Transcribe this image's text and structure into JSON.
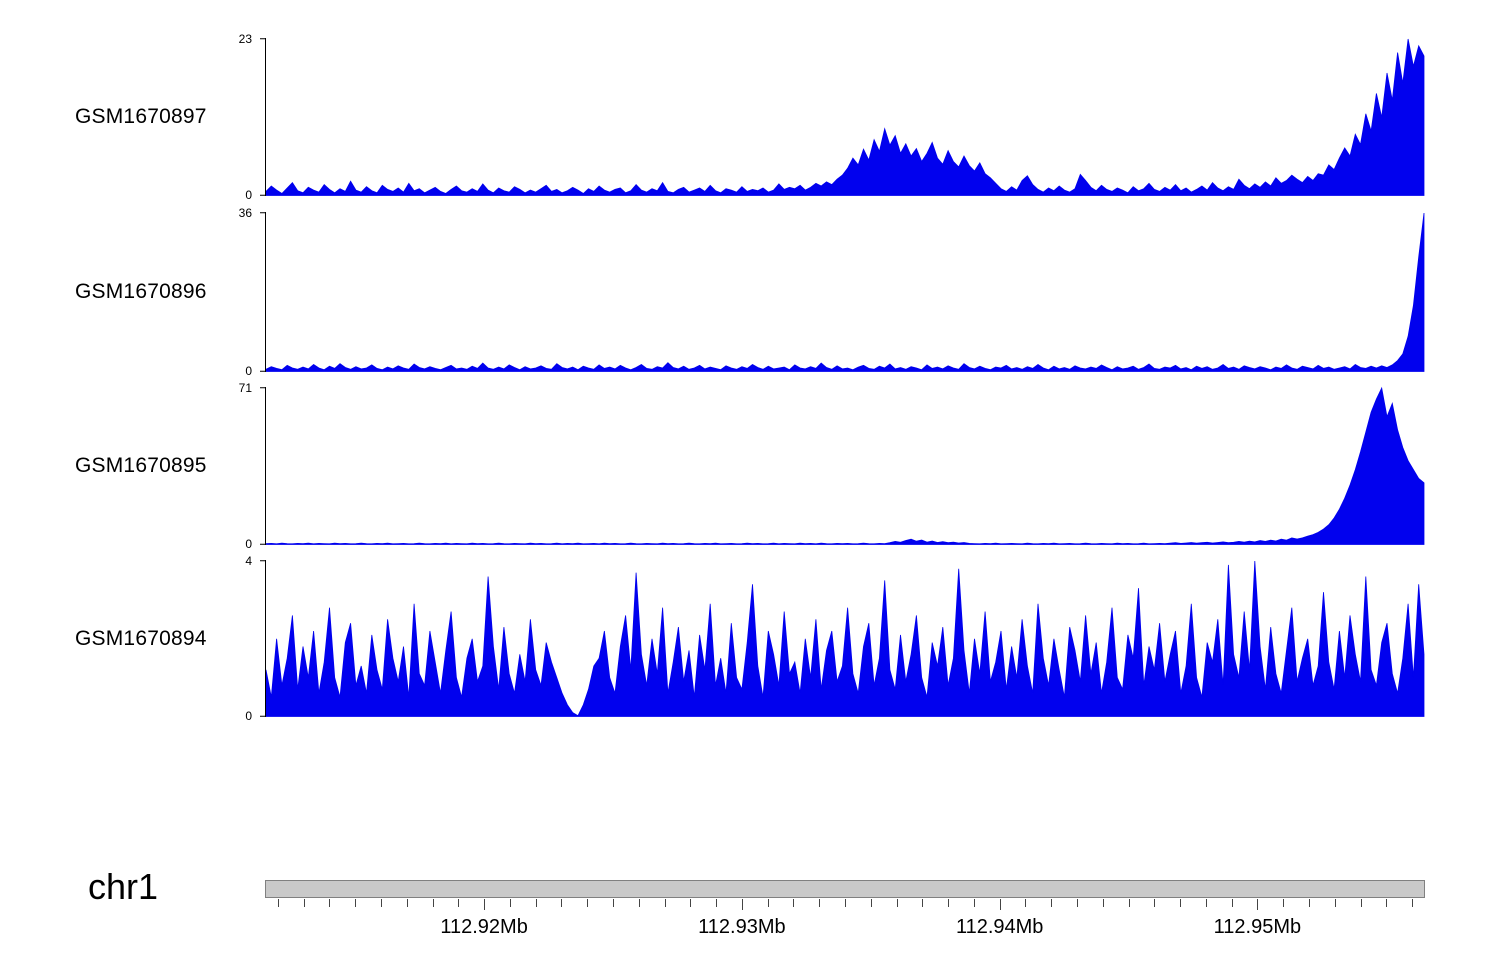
{
  "page": {
    "background": "#ffffff"
  },
  "chart_data": {
    "type": "area",
    "title": "",
    "xlabel": "chr1",
    "grid": false,
    "legend": "none",
    "signal_color": "#0101ee",
    "ruler_bar_color": "#c9c9c9",
    "x_axis": {
      "label": "chr1",
      "start_mb": 112.9115,
      "end_mb": 112.9565,
      "minor_tick_step_mb": 0.001,
      "tick_positions_mb": [
        112.92,
        112.93,
        112.94,
        112.95
      ],
      "tick_labels": [
        "112.92Mb",
        "112.93Mb",
        "112.94Mb",
        "112.95Mb"
      ]
    },
    "series": [
      {
        "name": "GSM1670897",
        "ylim": [
          0,
          23
        ],
        "values": [
          0.6,
          1.4,
          0.8,
          0.3,
          1.1,
          1.9,
          0.7,
          0.4,
          1.2,
          0.8,
          0.5,
          1.6,
          0.9,
          0.4,
          1.0,
          0.6,
          2.1,
          0.8,
          0.5,
          1.3,
          0.7,
          0.4,
          1.5,
          0.9,
          0.6,
          1.1,
          0.5,
          1.8,
          0.7,
          1.0,
          0.4,
          0.8,
          1.2,
          0.6,
          0.3,
          0.9,
          1.4,
          0.7,
          0.5,
          1.0,
          0.6,
          1.7,
          0.8,
          0.4,
          1.1,
          0.7,
          0.5,
          1.3,
          0.9,
          0.4,
          0.8,
          0.5,
          1.0,
          1.5,
          0.6,
          0.9,
          0.4,
          0.7,
          1.2,
          0.8,
          0.3,
          1.0,
          0.6,
          1.4,
          0.8,
          0.5,
          0.9,
          1.1,
          0.4,
          0.7,
          1.6,
          0.8,
          0.5,
          1.0,
          0.7,
          1.9,
          0.6,
          0.4,
          0.9,
          1.2,
          0.5,
          0.8,
          1.1,
          0.6,
          1.5,
          0.7,
          0.4,
          1.0,
          0.8,
          0.5,
          1.3,
          0.6,
          0.9,
          0.7,
          1.1,
          0.5,
          0.8,
          1.7,
          0.9,
          1.2,
          1.0,
          1.5,
          0.8,
          1.2,
          1.8,
          1.4,
          2.0,
          1.6,
          2.4,
          3.0,
          4.0,
          5.5,
          4.5,
          6.8,
          5.2,
          8.2,
          6.5,
          9.8,
          7.4,
          8.8,
          6.2,
          7.6,
          5.8,
          6.9,
          5.0,
          6.2,
          7.8,
          5.5,
          4.6,
          6.6,
          5.0,
          4.2,
          5.8,
          4.4,
          3.6,
          4.8,
          3.2,
          2.6,
          1.8,
          1.0,
          0.6,
          1.3,
          0.8,
          2.2,
          2.9,
          1.6,
          0.9,
          0.5,
          1.1,
          0.7,
          1.4,
          0.8,
          0.5,
          1.0,
          3.1,
          2.2,
          1.2,
          0.7,
          1.5,
          0.9,
          0.6,
          1.1,
          0.8,
          0.4,
          1.3,
          0.7,
          1.0,
          1.8,
          0.9,
          0.6,
          1.2,
          0.8,
          1.6,
          0.7,
          1.1,
          0.5,
          0.9,
          1.4,
          0.8,
          1.9,
          1.1,
          0.7,
          1.3,
          0.9,
          2.4,
          1.5,
          1.0,
          1.7,
          1.2,
          2.0,
          1.4,
          2.6,
          1.8,
          2.2,
          3.0,
          2.4,
          1.9,
          2.8,
          2.2,
          3.2,
          3.0,
          4.5,
          3.8,
          5.5,
          7.0,
          5.8,
          9.0,
          7.5,
          12.0,
          9.5,
          15.0,
          11.5,
          18.0,
          14.0,
          21.0,
          16.5,
          23.0,
          19.0,
          22.0,
          20.5
        ]
      },
      {
        "name": "GSM1670896",
        "ylim": [
          0,
          36
        ],
        "values": [
          0.5,
          1.1,
          0.7,
          0.4,
          1.4,
          0.8,
          0.5,
          1.0,
          0.6,
          1.6,
          0.8,
          0.4,
          1.2,
          0.7,
          1.8,
          0.9,
          0.5,
          1.1,
          0.6,
          0.8,
          1.5,
          0.7,
          0.4,
          1.0,
          0.6,
          1.3,
          0.8,
          0.5,
          1.7,
          0.9,
          0.6,
          1.1,
          0.7,
          0.4,
          0.9,
          1.4,
          0.6,
          0.8,
          0.5,
          1.2,
          0.7,
          1.9,
          0.8,
          0.5,
          1.0,
          0.6,
          1.5,
          0.9,
          0.4,
          1.1,
          0.6,
          0.8,
          1.3,
          0.7,
          0.5,
          1.8,
          0.9,
          0.6,
          1.0,
          0.4,
          1.2,
          0.8,
          0.5,
          1.5,
          0.7,
          1.0,
          0.6,
          1.4,
          0.8,
          0.4,
          0.9,
          1.6,
          0.7,
          0.5,
          1.1,
          0.8,
          2.0,
          0.9,
          0.6,
          1.2,
          0.5,
          0.8,
          1.4,
          0.6,
          1.0,
          0.7,
          0.4,
          1.3,
          0.8,
          0.5,
          1.1,
          0.7,
          1.6,
          0.9,
          0.5,
          1.2,
          0.6,
          0.8,
          1.0,
          0.4,
          1.5,
          0.8,
          0.6,
          1.1,
          0.7,
          1.9,
          0.9,
          0.5,
          1.3,
          0.6,
          0.8,
          0.4,
          1.0,
          1.4,
          0.7,
          0.5,
          1.2,
          0.8,
          1.7,
          0.6,
          0.9,
          0.5,
          1.1,
          0.8,
          0.4,
          1.5,
          0.7,
          1.0,
          0.6,
          1.3,
          0.8,
          0.5,
          1.8,
          0.9,
          0.6,
          1.2,
          0.7,
          0.4,
          1.0,
          0.8,
          1.4,
          0.6,
          0.9,
          0.5,
          1.1,
          0.7,
          1.6,
          0.8,
          0.4,
          1.2,
          0.6,
          0.9,
          0.5,
          1.3,
          0.8,
          0.6,
          1.0,
          0.7,
          1.5,
          0.9,
          0.4,
          1.1,
          0.6,
          0.8,
          1.2,
          0.5,
          0.9,
          1.7,
          0.7,
          0.5,
          1.0,
          0.8,
          1.4,
          0.6,
          0.9,
          0.4,
          1.2,
          0.7,
          1.1,
          0.5,
          0.8,
          1.6,
          0.7,
          1.0,
          0.5,
          1.3,
          0.9,
          0.6,
          1.1,
          0.8,
          0.4,
          1.0,
          0.7,
          1.5,
          0.8,
          0.5,
          1.2,
          0.9,
          0.6,
          1.4,
          0.7,
          1.0,
          0.5,
          0.8,
          1.1,
          0.6,
          1.6,
          0.9,
          0.7,
          1.2,
          0.8,
          1.3,
          0.9,
          1.5,
          2.5,
          4.0,
          8.0,
          15.0,
          26.0,
          36.0
        ]
      },
      {
        "name": "GSM1670895",
        "ylim": [
          0,
          71
        ],
        "values": [
          0.4,
          0.5,
          0.3,
          0.6,
          0.4,
          0.3,
          0.5,
          0.4,
          0.6,
          0.3,
          0.5,
          0.4,
          0.3,
          0.6,
          0.4,
          0.5,
          0.3,
          0.4,
          0.6,
          0.4,
          0.3,
          0.5,
          0.4,
          0.6,
          0.3,
          0.4,
          0.5,
          0.3,
          0.4,
          0.6,
          0.4,
          0.3,
          0.5,
          0.4,
          0.6,
          0.3,
          0.5,
          0.4,
          0.3,
          0.6,
          0.4,
          0.5,
          0.3,
          0.4,
          0.6,
          0.4,
          0.3,
          0.5,
          0.4,
          0.3,
          0.6,
          0.4,
          0.5,
          0.3,
          0.4,
          0.6,
          0.3,
          0.5,
          0.4,
          0.6,
          0.3,
          0.4,
          0.5,
          0.3,
          0.6,
          0.4,
          0.5,
          0.3,
          0.4,
          0.6,
          0.4,
          0.3,
          0.5,
          0.4,
          0.3,
          0.6,
          0.4,
          0.5,
          0.3,
          0.4,
          0.6,
          0.4,
          0.3,
          0.5,
          0.4,
          0.6,
          0.3,
          0.4,
          0.5,
          0.3,
          0.4,
          0.6,
          0.4,
          0.5,
          0.3,
          0.4,
          0.6,
          0.3,
          0.5,
          0.4,
          0.3,
          0.6,
          0.4,
          0.5,
          0.3,
          0.6,
          0.4,
          0.3,
          0.5,
          0.4,
          0.5,
          0.3,
          0.4,
          0.6,
          0.4,
          0.3,
          0.5,
          0.4,
          0.8,
          1.4,
          1.0,
          1.8,
          2.4,
          1.5,
          2.0,
          1.1,
          1.6,
          0.9,
          1.3,
          0.8,
          1.1,
          0.7,
          0.9,
          0.5,
          0.4,
          0.3,
          0.5,
          0.4,
          0.6,
          0.3,
          0.4,
          0.5,
          0.4,
          0.3,
          0.6,
          0.4,
          0.3,
          0.5,
          0.4,
          0.6,
          0.3,
          0.4,
          0.5,
          0.3,
          0.4,
          0.6,
          0.4,
          0.3,
          0.5,
          0.4,
          0.3,
          0.6,
          0.4,
          0.5,
          0.3,
          0.4,
          0.6,
          0.3,
          0.4,
          0.5,
          0.4,
          0.6,
          0.8,
          0.5,
          0.7,
          0.9,
          0.6,
          0.8,
          1.0,
          0.7,
          0.9,
          1.2,
          0.8,
          1.0,
          1.4,
          1.1,
          1.5,
          1.2,
          1.8,
          1.4,
          2.0,
          1.6,
          2.4,
          2.0,
          3.0,
          2.5,
          3.0,
          3.8,
          4.5,
          5.5,
          7.0,
          9.0,
          12.0,
          16.0,
          21.0,
          27.0,
          34.0,
          42.0,
          51.0,
          60.0,
          66.0,
          71.0,
          58.0,
          64.0,
          52.0,
          44.0,
          38.0,
          34.0,
          30.0,
          28.0
        ]
      },
      {
        "name": "GSM1670894",
        "ylim": [
          0,
          4
        ],
        "values": [
          1.2,
          0.5,
          2.0,
          0.8,
          1.5,
          2.6,
          0.7,
          1.8,
          1.0,
          2.2,
          0.6,
          1.4,
          2.8,
          1.0,
          0.5,
          1.9,
          2.4,
          0.8,
          1.3,
          0.6,
          2.1,
          1.2,
          0.7,
          2.5,
          1.5,
          0.9,
          1.8,
          0.5,
          2.9,
          1.1,
          0.8,
          2.2,
          1.4,
          0.6,
          1.7,
          2.7,
          1.0,
          0.5,
          1.5,
          2.0,
          0.9,
          1.3,
          3.6,
          1.8,
          0.7,
          2.3,
          1.1,
          0.6,
          1.6,
          0.9,
          2.5,
          1.2,
          0.8,
          1.9,
          1.4,
          1.0,
          0.6,
          0.3,
          0.1,
          0.02,
          0.3,
          0.7,
          1.3,
          1.5,
          2.2,
          1.0,
          0.6,
          1.8,
          2.6,
          1.2,
          3.7,
          1.6,
          0.8,
          2.0,
          1.1,
          2.8,
          0.6,
          1.4,
          2.3,
          0.9,
          1.7,
          0.5,
          2.1,
          1.2,
          2.9,
          0.8,
          1.5,
          0.6,
          2.4,
          1.0,
          0.7,
          1.9,
          3.4,
          1.3,
          0.5,
          2.2,
          1.6,
          0.8,
          2.7,
          1.1,
          1.4,
          0.6,
          2.0,
          1.0,
          2.5,
          0.7,
          1.7,
          2.2,
          0.9,
          1.3,
          2.8,
          1.1,
          0.6,
          1.8,
          2.4,
          0.8,
          1.5,
          3.5,
          1.2,
          0.7,
          2.1,
          0.9,
          1.6,
          2.6,
          1.0,
          0.5,
          1.9,
          1.3,
          2.3,
          0.8,
          1.5,
          3.8,
          1.7,
          0.6,
          2.0,
          1.1,
          2.7,
          0.9,
          1.4,
          2.2,
          0.7,
          1.8,
          1.0,
          2.5,
          1.3,
          0.6,
          2.9,
          1.5,
          0.8,
          2.0,
          1.2,
          0.5,
          2.3,
          1.7,
          0.9,
          2.6,
          1.1,
          1.9,
          0.6,
          1.4,
          2.8,
          1.0,
          0.7,
          2.1,
          1.5,
          3.3,
          0.8,
          1.8,
          1.2,
          2.4,
          0.9,
          1.6,
          2.2,
          0.6,
          1.3,
          2.9,
          1.0,
          0.5,
          1.9,
          1.4,
          2.5,
          0.8,
          3.9,
          1.6,
          1.0,
          2.7,
          1.2,
          4.0,
          1.8,
          0.7,
          2.3,
          1.1,
          0.6,
          1.7,
          2.8,
          0.9,
          1.5,
          2.0,
          0.8,
          1.3,
          3.2,
          1.4,
          0.7,
          2.2,
          1.0,
          2.6,
          1.6,
          0.9,
          3.6,
          1.2,
          0.8,
          1.9,
          2.4,
          1.1,
          0.6,
          1.5,
          2.9,
          1.0,
          3.4,
          1.6
        ]
      }
    ]
  }
}
